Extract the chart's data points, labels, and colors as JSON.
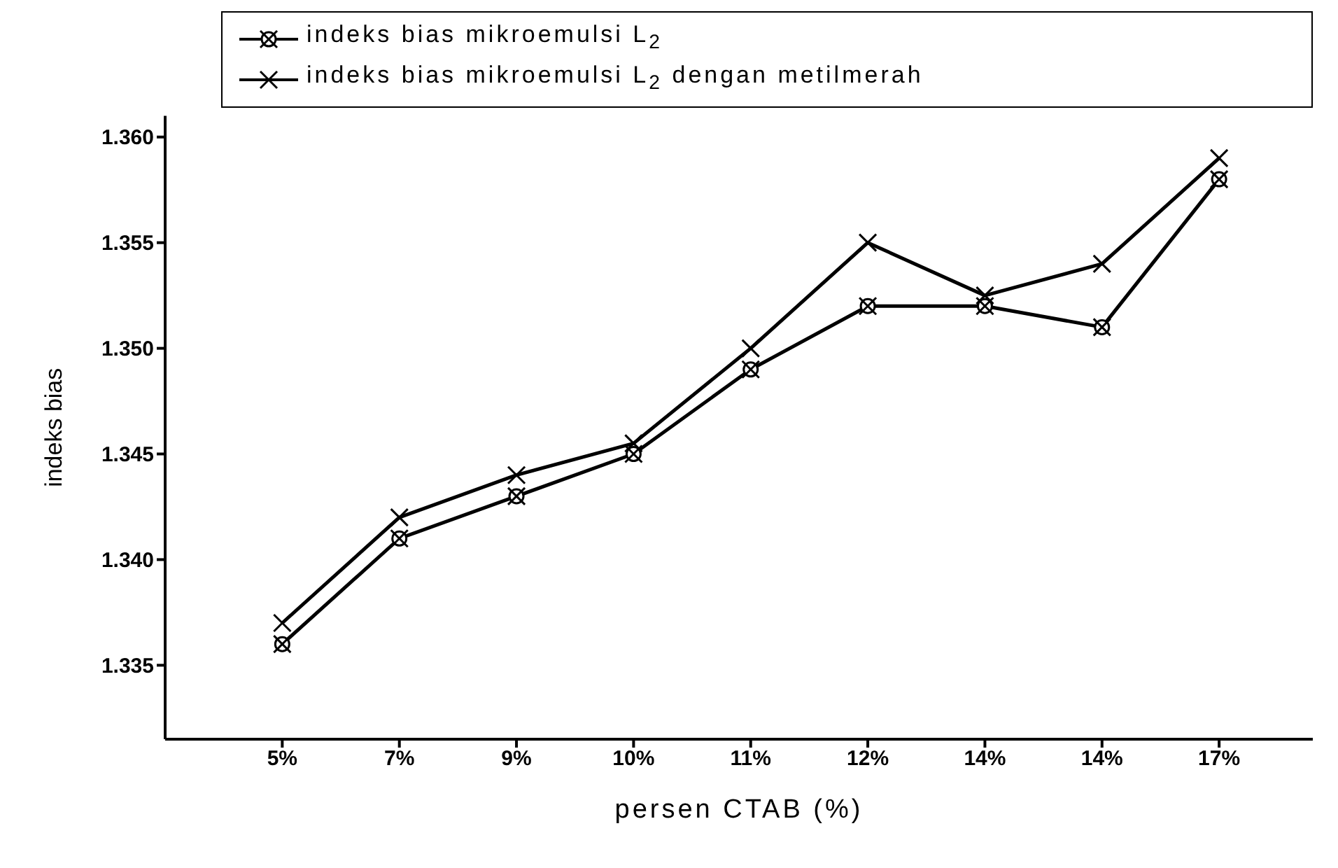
{
  "chart_data": {
    "type": "line",
    "xlabel": "persen CTAB (%)",
    "ylabel": "indeks bias",
    "categories": [
      "5%",
      "7%",
      "9%",
      "10%",
      "11%",
      "12%",
      "14%",
      "14%",
      "17%"
    ],
    "series": [
      {
        "name": "indeks bias mikroemulsi L$_{2}$",
        "color": "#000000",
        "marker": "circle",
        "values": [
          1.336,
          1.341,
          1.343,
          1.345,
          1.349,
          1.352,
          1.352,
          1.351,
          1.358
        ]
      },
      {
        "name": "indeks bias mikroemulsi L$_{2}$ dengan metilmerah",
        "color": "#000000",
        "marker": "cross",
        "values": [
          1.337,
          1.342,
          1.344,
          1.3455,
          1.35,
          1.355,
          1.3525,
          1.354,
          1.359
        ]
      }
    ],
    "ylim": [
      1.3315,
      1.361
    ],
    "yticks": [
      {
        "value": 1.335,
        "label": "1.335"
      },
      {
        "value": 1.34,
        "label": "1.340"
      },
      {
        "value": 1.345,
        "label": "1.345"
      },
      {
        "value": 1.35,
        "label": "1.350"
      },
      {
        "value": 1.355,
        "label": "1.355"
      },
      {
        "value": 1.36,
        "label": "1.360"
      }
    ],
    "grid": false,
    "legend": "top",
    "line_style": "solid"
  }
}
